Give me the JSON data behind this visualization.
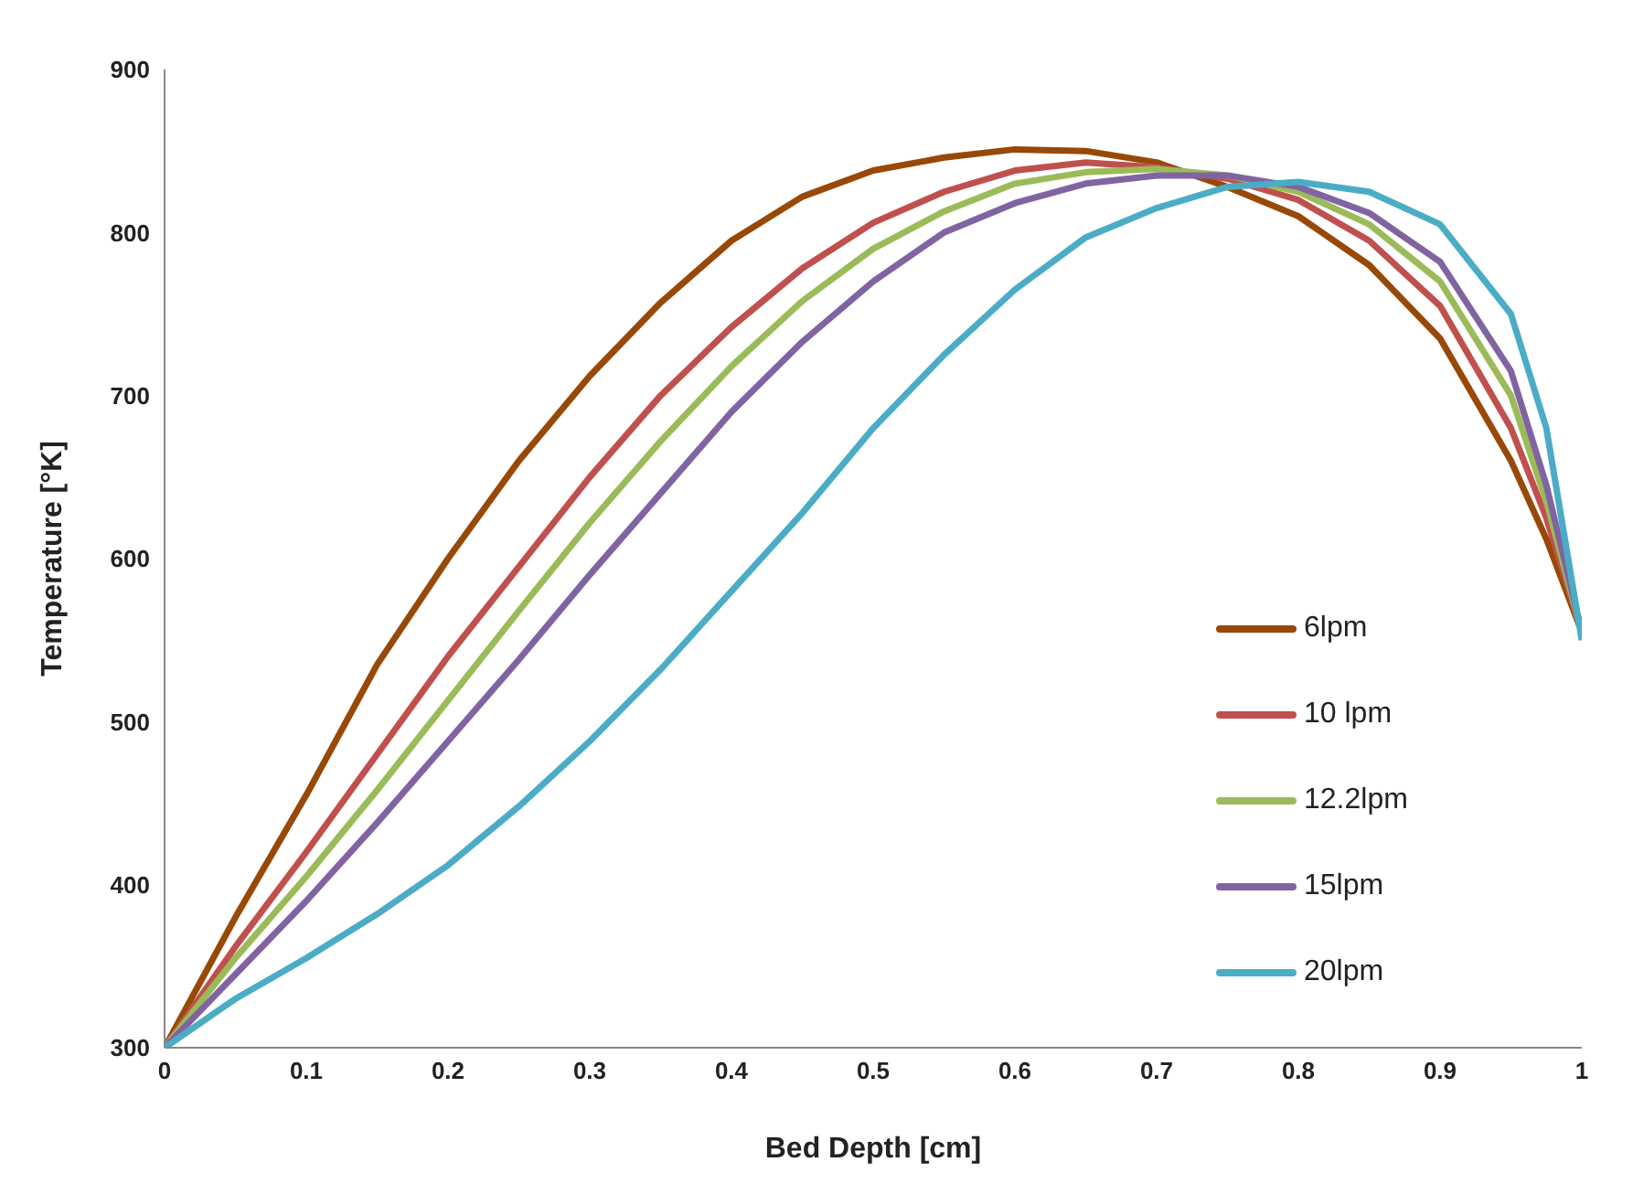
{
  "chart_data": {
    "type": "line",
    "xlabel": "Bed Depth [cm]",
    "ylabel": "Temperature [°K]",
    "x": [
      0,
      0.05,
      0.1,
      0.15,
      0.2,
      0.25,
      0.3,
      0.35,
      0.4,
      0.45,
      0.5,
      0.55,
      0.6,
      0.65,
      0.7,
      0.75,
      0.8,
      0.85,
      0.9,
      0.95,
      0.975,
      1
    ],
    "series": [
      {
        "name": "6lpm",
        "color": "#984807",
        "values": [
          300,
          380,
          455,
          535,
          600,
          660,
          712,
          757,
          795,
          822,
          838,
          846,
          851,
          850,
          843,
          828,
          810,
          780,
          735,
          660,
          612,
          555
        ]
      },
      {
        "name": "10 lpm",
        "color": "#c0504d",
        "values": [
          300,
          362,
          420,
          480,
          540,
          595,
          650,
          700,
          742,
          778,
          806,
          825,
          838,
          843,
          840,
          833,
          820,
          795,
          755,
          680,
          625,
          555
        ]
      },
      {
        "name": "12.2lpm",
        "color": "#9bbb59",
        "values": [
          300,
          355,
          405,
          458,
          513,
          568,
          622,
          672,
          718,
          758,
          790,
          813,
          830,
          837,
          839,
          835,
          825,
          805,
          770,
          700,
          635,
          555
        ]
      },
      {
        "name": "15lpm",
        "color": "#8064a2",
        "values": [
          300,
          345,
          390,
          438,
          488,
          538,
          590,
          640,
          690,
          733,
          770,
          800,
          818,
          830,
          835,
          835,
          828,
          812,
          782,
          715,
          645,
          555
        ]
      },
      {
        "name": "20lpm",
        "color": "#4bacc6",
        "values": [
          300,
          330,
          355,
          382,
          412,
          448,
          488,
          532,
          580,
          628,
          680,
          725,
          765,
          797,
          815,
          828,
          831,
          825,
          805,
          750,
          680,
          550
        ]
      }
    ],
    "xlim": [
      0,
      1
    ],
    "xticks": [
      0,
      0.1,
      0.2,
      0.3,
      0.4,
      0.5,
      0.6,
      0.7,
      0.8,
      0.9,
      1
    ],
    "ylim": [
      300,
      900
    ],
    "yticks": [
      300,
      400,
      500,
      600,
      700,
      800,
      900
    ],
    "grid": false,
    "legend": "bottom right",
    "marker": "none",
    "line_style": "solid"
  }
}
